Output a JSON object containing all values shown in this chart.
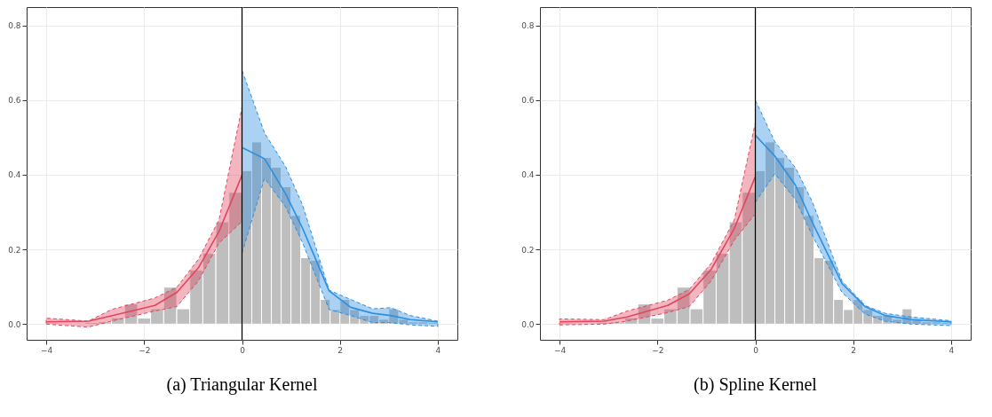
{
  "chart_data": [
    {
      "type": "histogram",
      "title": "(a) Triangular Kernel",
      "color": "#bebebe",
      "bins": [
        -4,
        -3.733,
        -3.467,
        -3.2,
        -2.933,
        -2.667,
        -2.4,
        -2.133,
        -1.867,
        -1.6,
        -1.333,
        -1.067,
        -0.8,
        -0.533,
        -0.267,
        0,
        0.2,
        0.4,
        0.6,
        0.8,
        1.0,
        1.2,
        1.4,
        1.6,
        1.8,
        2.0,
        2.2,
        2.4,
        2.6,
        2.8,
        3.0,
        3.2,
        3.4,
        3.6,
        3.8,
        4.0
      ],
      "values": [
        0.003,
        0.002,
        0.002,
        0.004,
        0.006,
        0.017,
        0.054,
        0.016,
        0.041,
        0.099,
        0.041,
        0.145,
        0.19,
        0.274,
        0.353,
        0.411,
        0.488,
        0.446,
        0.42,
        0.368,
        0.291,
        0.178,
        0.171,
        0.066,
        0.039,
        0.066,
        0.039,
        0.023,
        0.023,
        0.013,
        0.041,
        0.013,
        0.006,
        0.006,
        0.004
      ],
      "series": [
        {
          "type": "line",
          "line_style": "solid",
          "color": "#e0475f",
          "x": [
            -4,
            -3.14,
            -2.67,
            -1.78,
            -1.33,
            -0.89,
            -0.47,
            0
          ],
          "values": [
            0.006,
            0.008,
            0.022,
            0.05,
            0.085,
            0.151,
            0.248,
            0.399
          ],
          "lower": [
            0,
            -0.008,
            0.008,
            0.035,
            0.047,
            0.116,
            0.217,
            0.275
          ],
          "upper": [
            0.016,
            0.008,
            0.039,
            0.07,
            0.099,
            0.174,
            0.279,
            0.581
          ]
        },
        {
          "type": "line",
          "line_style": "solid",
          "color": "#2c8fe0",
          "x": [
            0,
            0.46,
            0.89,
            1.24,
            1.78,
            2.22,
            2.67,
            3.04,
            3.44,
            4
          ],
          "values": [
            0.473,
            0.443,
            0.349,
            0.256,
            0.089,
            0.045,
            0.029,
            0.023,
            0.012,
            0.006
          ],
          "lower": [
            0.19,
            0.391,
            0.314,
            0.217,
            0.039,
            0.023,
            0.004,
            0.004,
            -0.002,
            -0.006
          ],
          "upper": [
            0.68,
            0.512,
            0.422,
            0.318,
            0.091,
            0.066,
            0.041,
            0.044,
            0.023,
            0.008
          ]
        }
      ],
      "xlim": [
        -4.4,
        4.4
      ],
      "ylim": [
        -0.042,
        0.849
      ],
      "xticks": [
        -4,
        -2,
        0,
        2,
        4
      ],
      "yticks": [
        {
          "value": 0,
          "label": "0.0"
        },
        0.2,
        0.4,
        0.6,
        0.8
      ],
      "ref_lines": [
        {
          "axis": "x",
          "value": 0,
          "color": "#000000"
        }
      ],
      "grid": true
    },
    {
      "type": "histogram",
      "title": "(b) Spline Kernel",
      "color": "#bebebe",
      "bins": [
        -4,
        -3.733,
        -3.467,
        -3.2,
        -2.933,
        -2.667,
        -2.4,
        -2.133,
        -1.867,
        -1.6,
        -1.333,
        -1.067,
        -0.8,
        -0.533,
        -0.267,
        0,
        0.2,
        0.4,
        0.6,
        0.8,
        1.0,
        1.2,
        1.4,
        1.6,
        1.8,
        2.0,
        2.2,
        2.4,
        2.6,
        2.8,
        3.0,
        3.2,
        3.4,
        3.6,
        3.8,
        4.0
      ],
      "values": [
        0.003,
        0.002,
        0.002,
        0.004,
        0.006,
        0.017,
        0.054,
        0.016,
        0.041,
        0.099,
        0.041,
        0.145,
        0.19,
        0.274,
        0.353,
        0.411,
        0.488,
        0.446,
        0.42,
        0.368,
        0.291,
        0.178,
        0.171,
        0.066,
        0.039,
        0.066,
        0.039,
        0.023,
        0.023,
        0.013,
        0.041,
        0.013,
        0.006,
        0.006,
        0.004
      ],
      "series": [
        {
          "type": "line",
          "line_style": "solid",
          "color": "#e0475f",
          "x": [
            -4,
            -3.09,
            -2.62,
            -1.79,
            -1.35,
            -0.9,
            -0.43,
            0
          ],
          "values": [
            0.006,
            0.008,
            0.019,
            0.05,
            0.081,
            0.147,
            0.256,
            0.395
          ],
          "lower": [
            -0.002,
            0,
            0.008,
            0.031,
            0.047,
            0.116,
            0.225,
            0.295
          ],
          "upper": [
            0.014,
            0.012,
            0.035,
            0.064,
            0.093,
            0.163,
            0.279,
            0.539
          ]
        },
        {
          "type": "line",
          "line_style": "solid",
          "color": "#2c8fe0",
          "x": [
            0,
            0.4,
            0.82,
            1.17,
            1.77,
            2.24,
            2.65,
            3.19,
            4
          ],
          "values": [
            0.506,
            0.45,
            0.372,
            0.271,
            0.109,
            0.047,
            0.023,
            0.012,
            0.006
          ],
          "lower": [
            0.326,
            0.403,
            0.333,
            0.236,
            0.085,
            0.027,
            0.008,
            0,
            -0.004
          ],
          "upper": [
            0.6,
            0.488,
            0.419,
            0.326,
            0.116,
            0.05,
            0.029,
            0.019,
            0.009
          ]
        }
      ],
      "xlim": [
        -4.4,
        4.4
      ],
      "ylim": [
        -0.042,
        0.849
      ],
      "xticks": [
        -4,
        -2,
        0,
        2,
        4
      ],
      "yticks": [
        {
          "value": 0,
          "label": "0.0"
        },
        0.2,
        0.4,
        0.6,
        0.8
      ],
      "ref_lines": [
        {
          "axis": "x",
          "value": 0,
          "color": "#000000"
        }
      ],
      "grid": true
    }
  ]
}
